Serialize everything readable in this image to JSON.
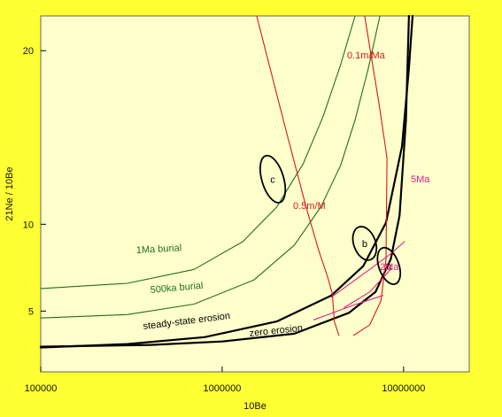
{
  "chart_data": {
    "type": "line",
    "title": "",
    "xlabel": "10Be",
    "ylabel": "21Ne / 10Be",
    "x_scale": "log",
    "xlim": [
      100000,
      23000000
    ],
    "ylim": [
      1.5,
      22
    ],
    "x_ticks": [
      {
        "value": 100000,
        "label": "100000"
      },
      {
        "value": 1000000,
        "label": "1000000"
      },
      {
        "value": 10000000,
        "label": "10000000"
      }
    ],
    "y_ticks": [
      {
        "value": 5,
        "label": "5"
      },
      {
        "value": 10,
        "label": "10"
      },
      {
        "value": 20,
        "label": "20"
      }
    ],
    "grid": false,
    "colors": {
      "page_background": "#ffff33",
      "plot_background": "#ffffcc",
      "steady_state": "#000000",
      "burial": "#1e6e1e",
      "erosion_rate": "#d61a1a",
      "exposure_time": "#e0208c",
      "ellipse": "#000000"
    },
    "series": [
      {
        "key": "steady-state",
        "label": "steady-state erosion",
        "x": [
          100000,
          300000,
          800000,
          2000000,
          4000000,
          6000000,
          8000000,
          9800000,
          10700000,
          11200000
        ],
        "y": [
          2.9,
          3.1,
          3.5,
          4.4,
          5.9,
          7.6,
          10.1,
          14.5,
          19.0,
          22.0
        ]
      },
      {
        "key": "zero-erosion",
        "label": "zero erosion",
        "x": [
          100000,
          400000,
          1000000,
          2500000,
          5000000,
          7000000,
          8500000,
          9500000,
          10300000,
          10700000
        ],
        "y": [
          2.95,
          3.05,
          3.25,
          3.7,
          4.9,
          6.1,
          8.0,
          10.5,
          16.0,
          22.0
        ]
      },
      {
        "key": "burial-1Ma",
        "label": "1Ma burial",
        "x": [
          100000,
          300000,
          700000,
          1300000,
          2000000,
          2800000,
          3600000,
          4500000,
          5400000
        ],
        "y": [
          6.3,
          6.6,
          7.4,
          9.0,
          11.0,
          13.5,
          16.2,
          19.2,
          22.0
        ]
      },
      {
        "key": "burial-500ka",
        "label": "500ka burial",
        "x": [
          100000,
          300000,
          700000,
          1500000,
          2500000,
          3500000,
          4500000,
          5400000,
          6400000,
          7400000
        ],
        "y": [
          4.6,
          4.8,
          5.4,
          6.8,
          8.8,
          11.0,
          13.4,
          16.0,
          19.0,
          22.0
        ]
      },
      {
        "key": "rate-0.5",
        "label": "0.5m/M",
        "x": [
          1550000,
          2300000,
          2900000,
          3400000,
          3800000,
          4050000
        ],
        "y": [
          22.0,
          15.0,
          11.0,
          8.5,
          7.0,
          6.0
        ]
      },
      {
        "key": "rate-0.1",
        "label": "0.1m/Ma",
        "x": [
          6100000,
          6600000,
          7300000,
          7900000,
          8100000
        ],
        "y": [
          22.0,
          19.8,
          17.0,
          14.6,
          13.8
        ]
      },
      {
        "key": "rate-0.5-tail",
        "x": [
          4050000,
          4150000,
          4400000
        ],
        "y": [
          6.0,
          4.4,
          3.6
        ]
      },
      {
        "key": "rate-0.1-tail",
        "x": [
          8100000,
          8000000,
          7500000,
          6500000,
          5300000
        ],
        "y": [
          13.8,
          8.0,
          5.6,
          4.2,
          3.6
        ]
      },
      {
        "key": "time-5Ma",
        "label": "5Ma",
        "x": [
          4000000,
          6500000,
          8500000,
          10100000
        ],
        "y": [
          5.8,
          7.4,
          8.3,
          9.0
        ]
      },
      {
        "key": "time-2Ma",
        "label": "2Ma",
        "x": [
          3200000,
          5500000,
          7700000
        ],
        "y": [
          4.5,
          5.4,
          5.9
        ]
      },
      {
        "key": "time-5Ma-lower",
        "x": [
          4700000,
          6500000,
          8500000
        ],
        "y": [
          5.2,
          6.1,
          7.4
        ]
      }
    ],
    "ellipses": [
      {
        "label": "a",
        "cx": 8300000,
        "cy": 7.6,
        "dx": 0.055,
        "dy": 1.1,
        "tilt": 0.12
      },
      {
        "label": "b",
        "cx": 6100000,
        "cy": 8.9,
        "dx": 0.06,
        "dy": 1.0,
        "tilt": 0.12
      },
      {
        "label": "c",
        "cx": 1900000,
        "cy": 12.6,
        "dx": 0.06,
        "dy": 1.4,
        "tilt": 0.1
      }
    ]
  }
}
